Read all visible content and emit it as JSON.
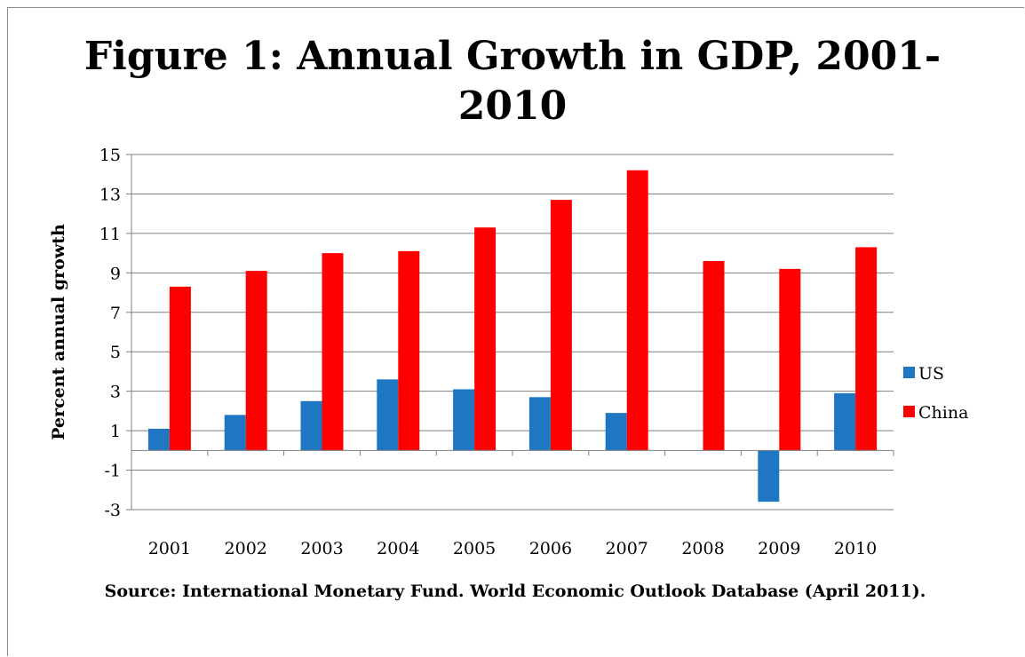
{
  "chart_data": {
    "type": "bar",
    "title": "Figure 1: Annual Growth in GDP, 2001-2010",
    "ylabel": "Percent annual growth",
    "xlabel": "",
    "categories": [
      "2001",
      "2002",
      "2003",
      "2004",
      "2005",
      "2006",
      "2007",
      "2008",
      "2009",
      "2010"
    ],
    "series": [
      {
        "name": "US",
        "color": "#1f77c4",
        "values": [
          1.1,
          1.8,
          2.5,
          3.6,
          3.1,
          2.7,
          1.9,
          0.0,
          -2.6,
          2.9
        ]
      },
      {
        "name": "China",
        "color": "#ff0000",
        "values": [
          8.3,
          9.1,
          10.0,
          10.1,
          11.3,
          12.7,
          14.2,
          9.6,
          9.2,
          10.3
        ]
      }
    ],
    "ylim": [
      -3,
      15
    ],
    "yticks": [
      -3,
      -1,
      1,
      3,
      5,
      7,
      9,
      11,
      13,
      15
    ],
    "ytick_labels": [
      "-3",
      "-1",
      "1",
      "3",
      "5",
      "7",
      "9",
      "11",
      "13",
      "15"
    ],
    "grid": true,
    "legend_position": "right",
    "source": "Source:  International Monetary Fund. World Economic Outlook Database (April 2011)."
  }
}
